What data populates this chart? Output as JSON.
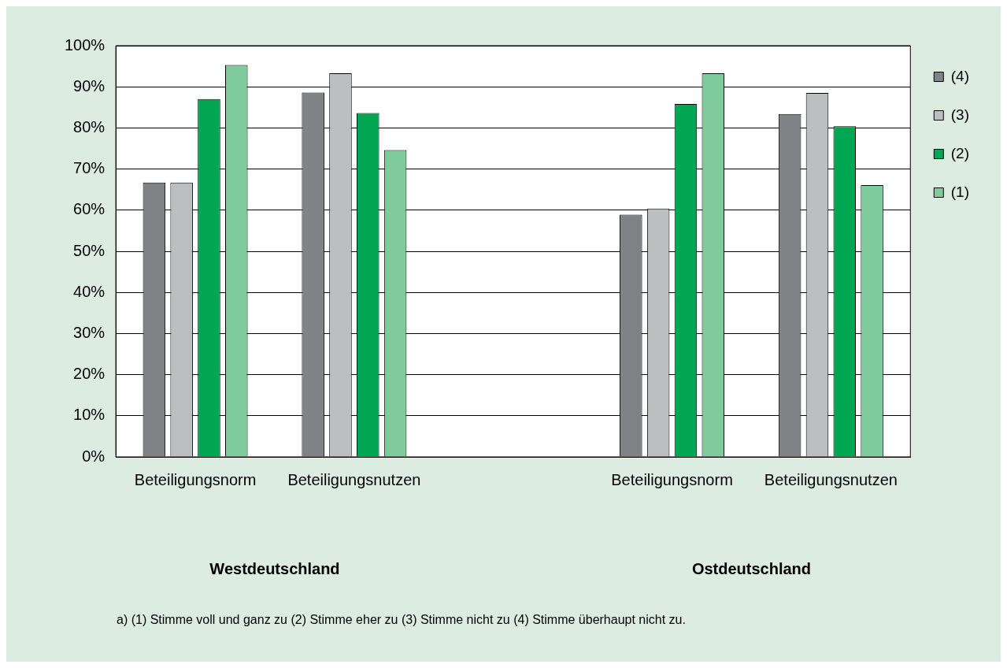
{
  "chart_data": {
    "type": "bar",
    "categories": [
      "Beteiligungsnorm",
      "Beteiligungsnutzen",
      null,
      "Beteiligungsnorm",
      "Beteiligungsnutzen"
    ],
    "series": [
      {
        "name": "(4)",
        "color": "#808285",
        "values": [
          66.7,
          88.6,
          null,
          58.9,
          83.4
        ]
      },
      {
        "name": "(3)",
        "color": "#bcbec0",
        "values": [
          66.7,
          93.3,
          null,
          60.4,
          88.5
        ]
      },
      {
        "name": "(2)",
        "color": "#00a651",
        "values": [
          87.0,
          83.6,
          null,
          85.8,
          80.4
        ]
      },
      {
        "name": "(1)",
        "color": "#7fcb9c",
        "values": [
          95.3,
          74.6,
          null,
          93.3,
          66.1
        ]
      }
    ],
    "ylim": [
      0,
      100
    ],
    "yticks": [
      {
        "value": 0,
        "label": "0%"
      },
      {
        "value": 10,
        "label": "10%"
      },
      {
        "value": 20,
        "label": "20%"
      },
      {
        "value": 30,
        "label": "30%"
      },
      {
        "value": 40,
        "label": "40%"
      },
      {
        "value": 50,
        "label": "50%"
      },
      {
        "value": 60,
        "label": "60%"
      },
      {
        "value": 70,
        "label": "70%"
      },
      {
        "value": 80,
        "label": "80%"
      },
      {
        "value": 90,
        "label": "90%"
      },
      {
        "value": 100,
        "label": "100%"
      }
    ],
    "grid": "y",
    "legend": "top right",
    "annotations": [
      "Westdeutschland",
      "Ostdeutschland",
      "a) (1) Stimme voll und ganz zu (2) Stimme eher zu (3) Stimme nicht zu (4) Stimme überhaupt nicht zu."
    ]
  }
}
